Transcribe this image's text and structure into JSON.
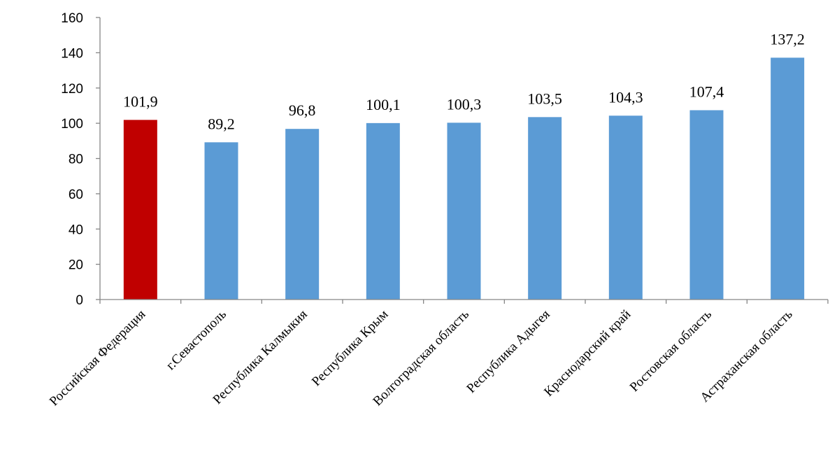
{
  "chart_data": {
    "type": "bar",
    "title": "",
    "xlabel": "",
    "ylabel": "",
    "ylim": [
      0,
      160
    ],
    "yticks": [
      0,
      20,
      40,
      60,
      80,
      100,
      120,
      140,
      160
    ],
    "grid": false,
    "legend": "none",
    "categories": [
      "Российская Федерация",
      "г.Севастополь",
      "Республика Калмыкия",
      "Республика Крым",
      "Волгоградская область",
      "Республика Адыгея",
      "Краснодарский край",
      "Ростовская область",
      "Астраханская область"
    ],
    "values": [
      101.9,
      89.2,
      96.8,
      100.1,
      100.3,
      103.5,
      104.3,
      107.4,
      137.2
    ],
    "value_labels": [
      "101,9",
      "89,2",
      "96,8",
      "100,1",
      "100,3",
      "103,5",
      "104,3",
      "107,4",
      "137,2"
    ],
    "colors": {
      "highlight": "#C00000",
      "default": "#5B9BD5"
    },
    "highlight_index": 0
  }
}
